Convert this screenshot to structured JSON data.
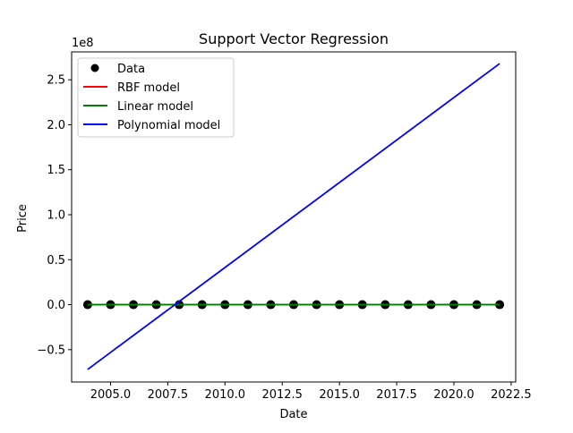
{
  "chart_data": {
    "type": "line",
    "title": "Support Vector Regression",
    "xlabel": "Date",
    "ylabel": "Price",
    "y_offset_label": "1e8",
    "y_scale": 100000000,
    "xlim": [
      2003.3,
      2022.7
    ],
    "ylim": [
      -86000000,
      281000000
    ],
    "xticks": [
      2005.0,
      2007.5,
      2010.0,
      2012.5,
      2015.0,
      2017.5,
      2020.0,
      2022.5
    ],
    "xtick_labels": [
      "2005.0",
      "2007.5",
      "2010.0",
      "2012.5",
      "2015.0",
      "2017.5",
      "2020.0",
      "2022.5"
    ],
    "yticks": [
      -50000000,
      0,
      50000000,
      100000000,
      150000000,
      200000000,
      250000000
    ],
    "ytick_labels": [
      "−0.5",
      "0.0",
      "0.5",
      "1.0",
      "1.5",
      "2.0",
      "2.5"
    ],
    "grid": false,
    "legend_position": "top-left",
    "legend": [
      {
        "label": "Data",
        "kind": "marker",
        "color": "#000000"
      },
      {
        "label": "RBF model",
        "kind": "line",
        "color": "#ff0000"
      },
      {
        "label": "Linear model",
        "kind": "line",
        "color": "#008000"
      },
      {
        "label": "Polynomial model",
        "kind": "line",
        "color": "#0000ff"
      }
    ],
    "data_points": {
      "x": [
        2004,
        2005,
        2006,
        2007,
        2008,
        2009,
        2010,
        2011,
        2012,
        2013,
        2014,
        2015,
        2016,
        2017,
        2018,
        2019,
        2020,
        2021,
        2022
      ],
      "y": [
        0,
        0,
        0,
        0,
        0,
        0,
        0,
        0,
        0,
        0,
        0,
        0,
        0,
        0,
        0,
        0,
        0,
        0,
        0
      ]
    },
    "series": [
      {
        "name": "RBF model",
        "color": "#ff0000",
        "x": [
          2004,
          2022
        ],
        "y": [
          0,
          0
        ]
      },
      {
        "name": "Linear model",
        "color": "#008000",
        "x": [
          2004,
          2022
        ],
        "y": [
          0,
          0
        ]
      },
      {
        "name": "Polynomial model",
        "color": "#0000ff",
        "x": [
          2004,
          2022
        ],
        "y": [
          -72000000,
          268000000
        ]
      }
    ]
  }
}
